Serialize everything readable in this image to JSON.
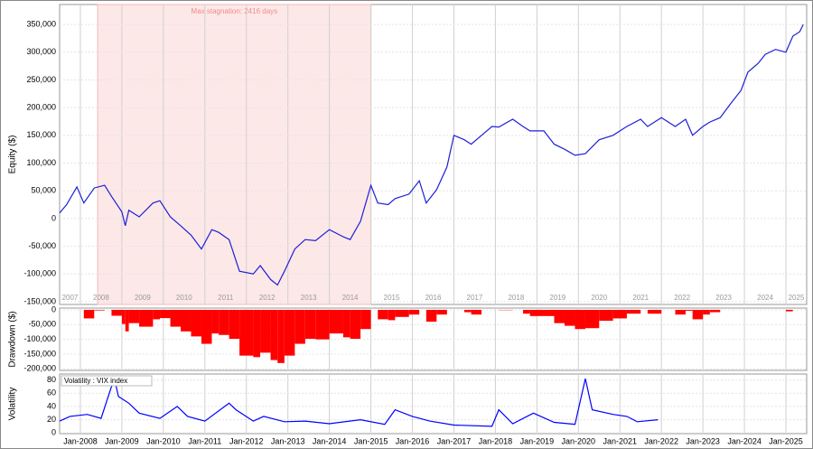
{
  "chart_data": [
    {
      "type": "line",
      "y_label": "Equity ($)",
      "color": "#1f1fd6",
      "grid": true,
      "annotation": {
        "text": "Max stagnation: 2416 days",
        "start": "2008-06",
        "end": "2015-01",
        "color": "#fde8e8"
      },
      "year_labels": [
        "2007",
        "2008",
        "2009",
        "2010",
        "2011",
        "2012",
        "2013",
        "2014",
        "2015",
        "2016",
        "2017",
        "2018",
        "2019",
        "2020",
        "2021",
        "2022",
        "2023",
        "2024",
        "2025"
      ],
      "x": [
        "2007-07",
        "2007-09",
        "2007-12",
        "2008-02",
        "2008-05",
        "2008-08",
        "2008-10",
        "2009-01",
        "2009-02",
        "2009-03",
        "2009-06",
        "2009-10",
        "2009-12",
        "2010-03",
        "2010-06",
        "2010-09",
        "2010-12",
        "2011-03",
        "2011-05",
        "2011-08",
        "2011-11",
        "2012-03",
        "2012-05",
        "2012-08",
        "2012-10",
        "2012-12",
        "2013-03",
        "2013-06",
        "2013-09",
        "2014-01",
        "2014-05",
        "2014-07",
        "2014-10",
        "2015-01",
        "2015-03",
        "2015-06",
        "2015-08",
        "2015-12",
        "2016-03",
        "2016-05",
        "2016-08",
        "2016-11",
        "2017-01",
        "2017-04",
        "2017-06",
        "2017-09",
        "2017-12",
        "2018-02",
        "2018-06",
        "2018-09",
        "2018-11",
        "2019-03",
        "2019-06",
        "2019-09",
        "2019-12",
        "2020-03",
        "2020-07",
        "2020-11",
        "2021-03",
        "2021-07",
        "2021-09",
        "2022-01",
        "2022-05",
        "2022-08",
        "2022-10",
        "2023-01",
        "2023-03",
        "2023-06",
        "2023-09",
        "2023-12",
        "2024-02",
        "2024-05",
        "2024-07",
        "2024-10",
        "2025-01",
        "2025-03",
        "2025-05",
        "2025-06"
      ],
      "values": [
        10000,
        25000,
        57000,
        28000,
        55000,
        60000,
        40000,
        12000,
        -13000,
        15000,
        3000,
        28000,
        32000,
        3000,
        -13000,
        -30000,
        -55000,
        -20000,
        -25000,
        -38000,
        -95000,
        -100000,
        -85000,
        -110000,
        -120000,
        -95000,
        -55000,
        -38000,
        -40000,
        -20000,
        -33000,
        -38000,
        -5000,
        60000,
        28000,
        25000,
        36000,
        44000,
        68000,
        28000,
        52000,
        93000,
        150000,
        142000,
        134000,
        150000,
        166000,
        165000,
        179000,
        166000,
        158000,
        158000,
        134000,
        125000,
        114000,
        117000,
        142000,
        150000,
        166000,
        179000,
        166000,
        182000,
        166000,
        179000,
        150000,
        166000,
        174000,
        182000,
        207000,
        231000,
        264000,
        280000,
        296000,
        305000,
        300000,
        329000,
        337000,
        350000
      ],
      "ylim": [
        -155000,
        386000
      ],
      "yticks": [
        {
          "value": -150000,
          "label": "-150,000"
        },
        {
          "value": -100000,
          "label": "-100,000"
        },
        {
          "value": -50000,
          "label": "-50,000"
        },
        0,
        {
          "value": 50000,
          "label": "50,000"
        },
        {
          "value": 100000,
          "label": "100,000"
        },
        {
          "value": 150000,
          "label": "150,000"
        },
        {
          "value": 200000,
          "label": "200,000"
        },
        {
          "value": 250000,
          "label": "250,000"
        },
        {
          "value": 300000,
          "label": "300,000"
        },
        {
          "value": 350000,
          "label": "350,000"
        }
      ]
    },
    {
      "type": "bar",
      "y_label": "Drawdown ($)",
      "color": "#ff0000",
      "grid": true,
      "x": [
        "2007-07",
        "2007-09",
        "2007-12",
        "2008-02",
        "2008-05",
        "2008-08",
        "2008-10",
        "2009-01",
        "2009-02",
        "2009-03",
        "2009-06",
        "2009-10",
        "2009-12",
        "2010-03",
        "2010-06",
        "2010-09",
        "2010-12",
        "2011-03",
        "2011-05",
        "2011-08",
        "2011-11",
        "2012-03",
        "2012-05",
        "2012-08",
        "2012-10",
        "2012-12",
        "2013-03",
        "2013-06",
        "2013-09",
        "2014-01",
        "2014-05",
        "2014-07",
        "2014-10",
        "2015-01",
        "2015-03",
        "2015-06",
        "2015-08",
        "2015-12",
        "2016-03",
        "2016-05",
        "2016-08",
        "2016-11",
        "2017-01",
        "2017-04",
        "2017-06",
        "2017-09",
        "2017-12",
        "2018-02",
        "2018-06",
        "2018-09",
        "2018-11",
        "2019-03",
        "2019-06",
        "2019-09",
        "2019-12",
        "2020-03",
        "2020-07",
        "2020-11",
        "2021-03",
        "2021-07",
        "2021-09",
        "2022-01",
        "2022-05",
        "2022-08",
        "2022-10",
        "2023-01",
        "2023-03",
        "2023-06",
        "2023-09",
        "2023-12",
        "2024-02",
        "2024-05",
        "2024-07",
        "2024-10",
        "2025-01",
        "2025-03",
        "2025-05",
        "2025-06"
      ],
      "values": [
        0,
        0,
        0,
        -29000,
        -2000,
        0,
        -20000,
        -48000,
        -73000,
        -45000,
        -57000,
        -32000,
        -28000,
        -57000,
        -73000,
        -90000,
        -115000,
        -80000,
        -85000,
        -98000,
        -155000,
        -160000,
        -145000,
        -170000,
        -180000,
        -155000,
        -115000,
        -98000,
        -100000,
        -80000,
        -93000,
        -98000,
        -65000,
        0,
        -32000,
        -35000,
        -24000,
        -16000,
        0,
        -40000,
        -16000,
        0,
        0,
        -8000,
        -16000,
        0,
        0,
        -1000,
        0,
        -13000,
        -21000,
        -21000,
        -45000,
        -54000,
        -65000,
        -62000,
        -37000,
        -29000,
        -13000,
        0,
        -13000,
        0,
        -16000,
        -3000,
        -32000,
        -16000,
        -8000,
        0,
        0,
        0,
        0,
        0,
        0,
        0,
        -5000,
        0,
        0,
        0
      ],
      "ylim": [
        -205000,
        6000
      ],
      "yticks": [
        {
          "value": -200000,
          "label": "-200,000"
        },
        {
          "value": -150000,
          "label": "-150,000"
        },
        {
          "value": -100000,
          "label": "-100,000"
        },
        {
          "value": -50000,
          "label": "-50,000"
        },
        0
      ]
    },
    {
      "type": "line",
      "y_label": "Volatility",
      "grid": true,
      "x": [
        "2007-07",
        "2007-10",
        "2008-03",
        "2008-07",
        "2008-10",
        "2008-11",
        "2008-12",
        "2009-03",
        "2009-06",
        "2009-12",
        "2010-05",
        "2010-08",
        "2011-01",
        "2011-08",
        "2011-10",
        "2012-03",
        "2012-06",
        "2012-12",
        "2013-06",
        "2014-01",
        "2014-10",
        "2015-05",
        "2015-08",
        "2016-01",
        "2016-06",
        "2017-01",
        "2017-12",
        "2018-02",
        "2018-06",
        "2018-12",
        "2019-06",
        "2019-12",
        "2020-03",
        "2020-05",
        "2020-11",
        "2021-03",
        "2021-06",
        "2021-12"
      ],
      "series": [
        {
          "name": "Volatility : VIX index",
          "color": "#0000ff",
          "values": [
            18,
            25,
            28,
            22,
            70,
            78,
            55,
            45,
            30,
            22,
            40,
            25,
            18,
            45,
            35,
            18,
            25,
            17,
            18,
            14,
            20,
            13,
            35,
            25,
            18,
            12,
            10,
            35,
            14,
            30,
            16,
            13,
            82,
            35,
            28,
            25,
            17,
            20
          ]
        }
      ],
      "ylim": [
        -1,
        89
      ],
      "yticks": [
        0,
        20,
        40,
        60,
        80
      ],
      "xlim": [
        "2007-07",
        "2025-07"
      ],
      "xticks": [
        {
          "value": "2008-01",
          "label": "Jan-2008"
        },
        {
          "value": "2009-01",
          "label": "Jan-2009"
        },
        {
          "value": "2010-01",
          "label": "Jan-2010"
        },
        {
          "value": "2011-01",
          "label": "Jan-2011"
        },
        {
          "value": "2012-01",
          "label": "Jan-2012"
        },
        {
          "value": "2013-01",
          "label": "Jan-2013"
        },
        {
          "value": "2014-01",
          "label": "Jan-2014"
        },
        {
          "value": "2015-01",
          "label": "Jan-2015"
        },
        {
          "value": "2016-01",
          "label": "Jan-2016"
        },
        {
          "value": "2017-01",
          "label": "Jan-2017"
        },
        {
          "value": "2018-01",
          "label": "Jan-2018"
        },
        {
          "value": "2019-01",
          "label": "Jan-2019"
        },
        {
          "value": "2020-01",
          "label": "Jan-2020"
        },
        {
          "value": "2021-01",
          "label": "Jan-2021"
        },
        {
          "value": "2022-01",
          "label": "Jan-2022"
        },
        {
          "value": "2023-01",
          "label": "Jan-2023"
        },
        {
          "value": "2024-01",
          "label": "Jan-2024"
        },
        {
          "value": "2025-01",
          "label": "Jan-2025"
        }
      ]
    }
  ]
}
